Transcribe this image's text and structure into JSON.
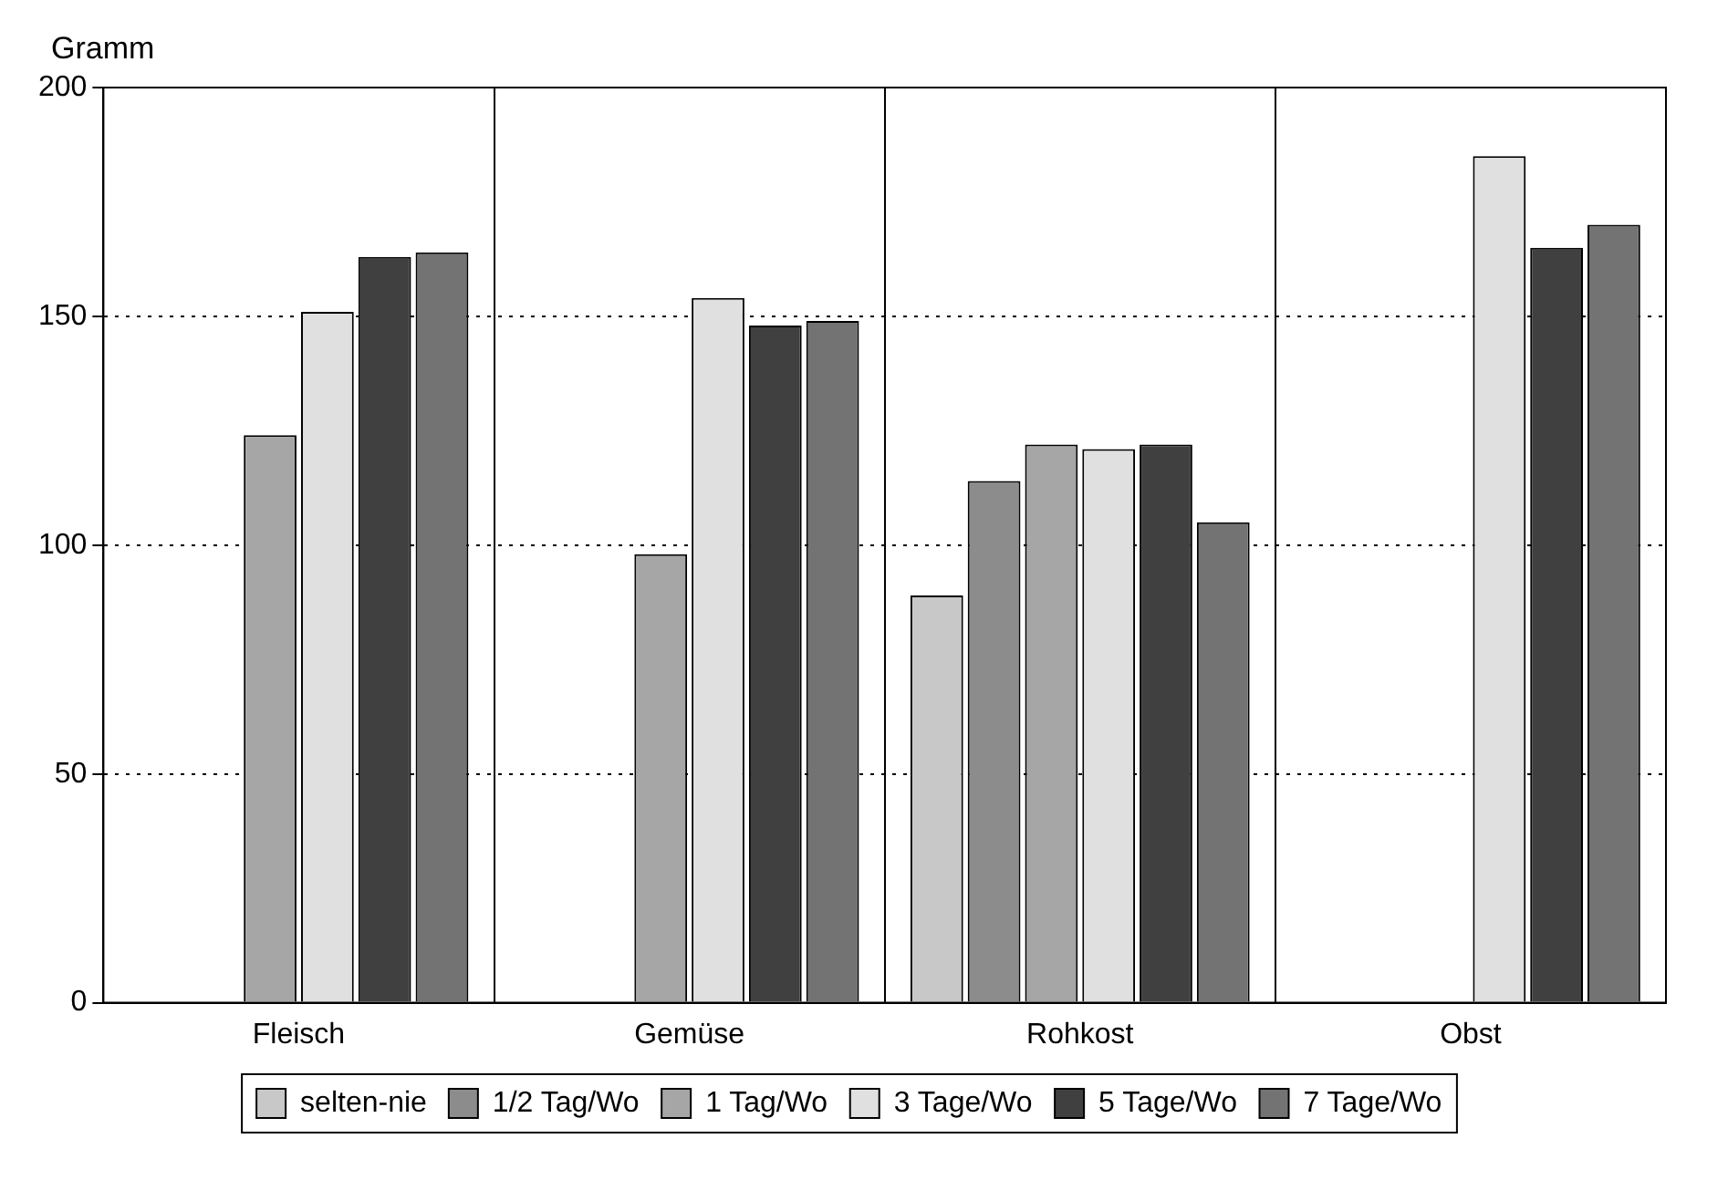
{
  "chart_data": {
    "type": "bar",
    "ylabel": "Gramm",
    "categories": [
      "Fleisch",
      "Gemüse",
      "Rohkost",
      "Obst"
    ],
    "series": [
      {
        "name": "selten-nie",
        "color": "#c8c8c8",
        "values": [
          null,
          null,
          89,
          null
        ]
      },
      {
        "name": "1/2 Tag/Wo",
        "color": "#8c8c8c",
        "values": [
          null,
          null,
          114,
          null
        ]
      },
      {
        "name": "1 Tag/Wo",
        "color": "#a6a6a6",
        "values": [
          124,
          98,
          122,
          null
        ]
      },
      {
        "name": "3 Tage/Wo",
        "color": "#e0e0e0",
        "values": [
          151,
          154,
          121,
          185
        ]
      },
      {
        "name": "5 Tage/Wo",
        "color": "#404040",
        "values": [
          163,
          148,
          122,
          165
        ]
      },
      {
        "name": "7 Tage/Wo",
        "color": "#737373",
        "values": [
          164,
          149,
          105,
          170
        ]
      }
    ],
    "ylim": [
      0,
      200
    ],
    "yticks": [
      0,
      50,
      100,
      150,
      200
    ],
    "grid": true,
    "legend": "bottom"
  }
}
